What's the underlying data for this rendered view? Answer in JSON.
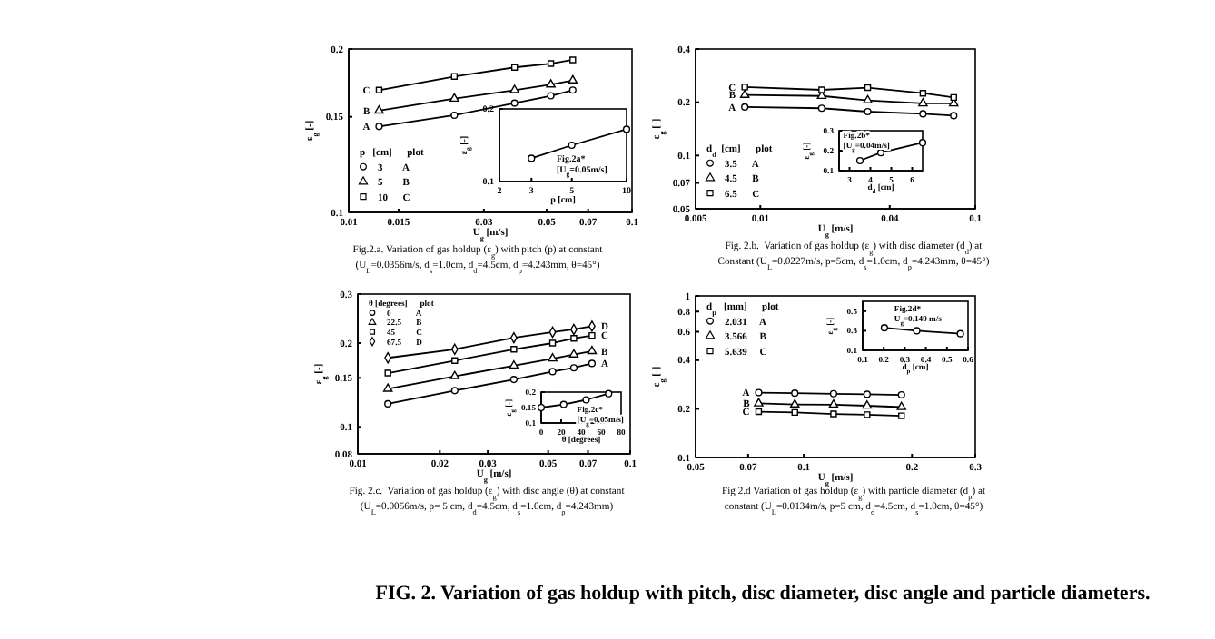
{
  "chart_data": [
    {
      "type": "line",
      "xlabel": "U$_{g}$ [m/s]",
      "ylabel": "ε$_{g}$ [-]",
      "log": "xy",
      "xlim": [
        0.01,
        0.1
      ],
      "xticks": [
        0.01,
        0.015,
        0.03,
        0.05,
        0.07,
        0.1
      ],
      "ylim": [
        0.1,
        0.2
      ],
      "yticks": [
        0.1,
        0.15,
        0.2
      ],
      "legend": "bottom left",
      "legend_title": "p   [cm]      plot",
      "grid": false,
      "line_style": "solid",
      "x": [
        0.0128,
        0.0236,
        0.0385,
        0.0517,
        0.0618
      ],
      "series": [
        {
          "name": "3        A",
          "color": "#000000",
          "marker": "circle",
          "values": [
            0.144,
            0.151,
            0.159,
            0.164,
            0.168
          ]
        },
        {
          "name": "5        B",
          "color": "#000000",
          "marker": "triangle",
          "values": [
            0.154,
            0.162,
            0.168,
            0.172,
            0.175
          ]
        },
        {
          "name": "10      C",
          "color": "#000000",
          "marker": "square",
          "values": [
            0.168,
            0.178,
            0.185,
            0.188,
            0.191
          ]
        }
      ],
      "annotations": [
        {
          "text": "A",
          "x": 0.0128,
          "y": 0.144
        },
        {
          "text": "B",
          "x": 0.0128,
          "y": 0.154
        },
        {
          "text": "C",
          "x": 0.0128,
          "y": 0.168
        },
        "Fig.2.a. Variation of gas holdup (ε$_{g}$) with pitch (p) at constant",
        "(U$_{L}$=0.0356m/s, d$_{s}$=1.0cm, d$_{d}$=4.5cm, d$_{p}$=4.243mm, θ=45°)"
      ]
    },
    {
      "type": "line",
      "title": "Fig.2a*",
      "subtitle": "[U$_{g}$=0.05m/s]",
      "xlabel": "p [cm]",
      "ylabel": "ε$_{g}$ [-]",
      "log": "x",
      "xlim": [
        2,
        10
      ],
      "xticks": [
        2,
        3,
        5,
        10
      ],
      "ylim": [
        0.1,
        0.2
      ],
      "yticks": [
        0.1,
        0.2
      ],
      "marker": "circle",
      "x": [
        3,
        5,
        10
      ],
      "series": [
        {
          "color": "#000000",
          "values": [
            0.132,
            0.15,
            0.172
          ]
        }
      ]
    },
    {
      "type": "line",
      "xlabel": "U$_{g}$ [m/s]",
      "ylabel": "ε$_{g}$ [-]",
      "log": "xy",
      "xlim": [
        0.005,
        0.1
      ],
      "xticks": [
        0.005,
        0.01,
        0.04,
        0.1
      ],
      "ylim": [
        0.05,
        0.4
      ],
      "yticks": [
        0.05,
        0.07,
        0.1,
        0.2,
        0.4
      ],
      "legend": "bottom left",
      "legend_title": "d$_{d}$  [cm]      plot",
      "grid": false,
      "line_style": "solid",
      "x": [
        0.00847,
        0.0193,
        0.0316,
        0.0571,
        0.0794
      ],
      "series": [
        {
          "name": "3.5      A",
          "color": "#000000",
          "marker": "circle",
          "values": [
            0.188,
            0.185,
            0.177,
            0.172,
            0.168
          ]
        },
        {
          "name": "4.5      B",
          "color": "#000000",
          "marker": "triangle",
          "values": [
            0.22,
            0.217,
            0.205,
            0.197,
            0.197
          ]
        },
        {
          "name": "6.5      C",
          "color": "#000000",
          "marker": "square",
          "values": [
            0.244,
            0.235,
            0.242,
            0.225,
            0.213
          ]
        }
      ],
      "annotations": [
        {
          "text": "A",
          "x": 0.00847,
          "y": 0.188
        },
        {
          "text": "B",
          "x": 0.00847,
          "y": 0.22
        },
        {
          "text": "C",
          "x": 0.00847,
          "y": 0.244
        },
        "Fig. 2.b.  Variation of gas holdup (ε$_{g}$) with disc diameter (d$_{d}$) at",
        "Constant (U$_{L}$=0.0227m/s, p=5cm, d$_{s}$=1.0cm, d$_{p}$=4.243mm, θ=45°)"
      ]
    },
    {
      "type": "line",
      "title": "Fig.2b*",
      "subtitle": "[U$_{g}$=0.04m/s]",
      "xlabel": "d$_{d}$ [cm]",
      "ylabel": "ε$_{g}$ [-]",
      "xlim": [
        2.5,
        6.5
      ],
      "xticks": [
        3,
        4,
        5,
        6
      ],
      "ylim": [
        0.1,
        0.3
      ],
      "yticks": [
        0.1,
        0.2,
        0.3
      ],
      "marker": "circle",
      "x": [
        3.5,
        4.5,
        6.5
      ],
      "series": [
        {
          "color": "#000000",
          "values": [
            0.15,
            0.19,
            0.24
          ]
        }
      ]
    },
    {
      "type": "line",
      "xlabel": "U$_{g}$ [m/s]",
      "ylabel": "ε$_{g}$ [-]",
      "log": "xy",
      "xlim": [
        0.01,
        0.1
      ],
      "xticks": [
        0.01,
        0.02,
        0.03,
        0.05,
        0.07,
        0.1
      ],
      "ylim": [
        0.08,
        0.3
      ],
      "yticks": [
        0.08,
        0.1,
        0.15,
        0.2,
        0.3
      ],
      "legend": "top left",
      "legend_title": "θ [degrees]      plot",
      "grid": false,
      "line_style": "solid",
      "x": [
        0.0129,
        0.0227,
        0.0374,
        0.0519,
        0.0621,
        0.0724
      ],
      "series": [
        {
          "name": "0            A",
          "color": "#000000",
          "marker": "circle",
          "values": [
            0.121,
            0.135,
            0.148,
            0.158,
            0.163,
            0.169
          ]
        },
        {
          "name": "22.5       B",
          "color": "#000000",
          "marker": "triangle",
          "values": [
            0.137,
            0.152,
            0.166,
            0.176,
            0.182,
            0.187
          ]
        },
        {
          "name": "45          C",
          "color": "#000000",
          "marker": "square",
          "values": [
            0.156,
            0.173,
            0.19,
            0.2,
            0.208,
            0.213
          ]
        },
        {
          "name": "67.5       D",
          "color": "#000000",
          "marker": "diamond",
          "values": [
            0.177,
            0.19,
            0.209,
            0.219,
            0.224,
            0.23
          ]
        }
      ],
      "annotations": [
        {
          "text": "A",
          "x": 0.0724,
          "y": 0.169
        },
        {
          "text": "B",
          "x": 0.0724,
          "y": 0.187
        },
        {
          "text": "C",
          "x": 0.0724,
          "y": 0.213
        },
        {
          "text": "D",
          "x": 0.0724,
          "y": 0.23
        },
        "Fig. 2.c.  Variation of gas holdup (ε$_{g}$) with disc angle (θ) at constant",
        "(U$_{L}$=0.0056m/s, p= 5 cm, d$_{d}$=4.5cm, d$_{s}$=1.0cm, d$_{p}$=4.243mm)"
      ]
    },
    {
      "type": "line",
      "title": "Fig.2c*",
      "subtitle": "[U$_{g}$=0.05m/s]",
      "xlabel": "θ [degrees]",
      "ylabel": "ε$_{g}$ [-]",
      "xlim": [
        0,
        80
      ],
      "xticks": [
        0,
        20,
        40,
        60,
        80
      ],
      "ylim": [
        0.1,
        0.2
      ],
      "yticks": [
        0.1,
        0.15,
        0.2
      ],
      "marker": "circle",
      "x": [
        0,
        22.5,
        45,
        67.5
      ],
      "series": [
        {
          "color": "#000000",
          "values": [
            0.15,
            0.16,
            0.175,
            0.195
          ]
        }
      ]
    },
    {
      "type": "line",
      "xlabel": "U$_{g}$ [m/s]",
      "ylabel": "ε$_{g}$ [-]",
      "log": "xy",
      "xlim": [
        0.05,
        0.3
      ],
      "xticks": [
        0.05,
        0.07,
        0.1,
        0.2,
        0.3
      ],
      "ylim": [
        0.1,
        1
      ],
      "yticks": [
        0.1,
        0.2,
        0.4,
        0.6,
        0.8,
        1
      ],
      "legend": "top left",
      "legend_title": "d$_{p}$   [mm]      plot",
      "grid": false,
      "line_style": "solid",
      "x": [
        0.0749,
        0.0944,
        0.121,
        0.15,
        0.187
      ],
      "series": [
        {
          "name": "2.031     A",
          "color": "#000000",
          "marker": "circle",
          "values": [
            0.252,
            0.25,
            0.248,
            0.246,
            0.244
          ]
        },
        {
          "name": "3.566     B",
          "color": "#000000",
          "marker": "triangle",
          "values": [
            0.216,
            0.213,
            0.212,
            0.209,
            0.205
          ]
        },
        {
          "name": "5.639     C",
          "color": "#000000",
          "marker": "square",
          "values": [
            0.192,
            0.19,
            0.186,
            0.184,
            0.181
          ]
        }
      ],
      "annotations": [
        {
          "text": "A",
          "x": 0.0749,
          "y": 0.252
        },
        {
          "text": "B",
          "x": 0.0749,
          "y": 0.216
        },
        {
          "text": "C",
          "x": 0.0749,
          "y": 0.192
        },
        "Fig 2.d Variation of gas holdup (ε$_{g}$) with particle diameter (d$_{p}$) at",
        "constant (U$_{L}$=0.0134m/s, p=5 cm, d$_{d}$=4.5cm, d$_{s}$=1.0cm, θ=45°)"
      ]
    },
    {
      "type": "line",
      "title": "Fig.2d*",
      "subtitle": "U$_{g}$=0.149 m/s",
      "xlabel": "d$_{p}$ [cm]",
      "ylabel": "ε$_{g}$ [-]",
      "xlim": [
        0.1,
        0.6
      ],
      "xticks": [
        0.1,
        0.2,
        0.3,
        0.4,
        0.5,
        0.6
      ],
      "ylim": [
        0.1,
        0.6
      ],
      "yticks": [
        0.1,
        0.3,
        0.5
      ],
      "marker": "circle",
      "x": [
        0.2031,
        0.3566,
        0.5639
      ],
      "series": [
        {
          "color": "#000000",
          "values": [
            0.33,
            0.3,
            0.27
          ]
        }
      ]
    },
    {
      "type": "other",
      "title": "FIG. 2. Variation of gas holdup with pitch, disc diameter, disc angle and particle diameters."
    }
  ]
}
